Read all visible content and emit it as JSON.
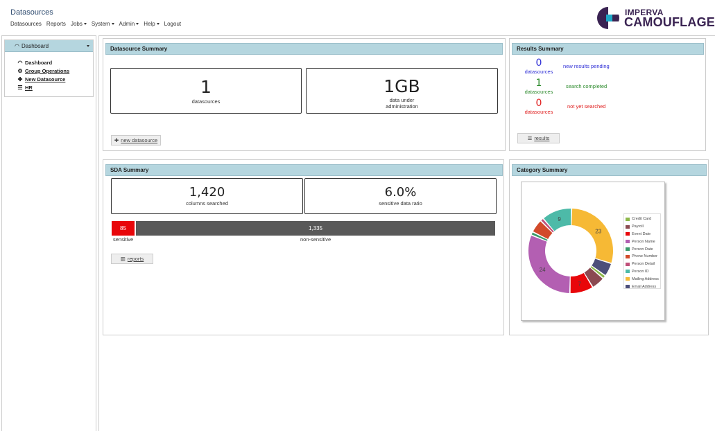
{
  "header": {
    "title": "Datasources",
    "nav": [
      {
        "label": "Datasources",
        "dropdown": false
      },
      {
        "label": "Reports",
        "dropdown": false
      },
      {
        "label": "Jobs",
        "dropdown": true
      },
      {
        "label": "System",
        "dropdown": true
      },
      {
        "label": "Admin",
        "dropdown": true
      },
      {
        "label": "Help",
        "dropdown": true
      },
      {
        "label": "Logout",
        "dropdown": false
      }
    ],
    "logo": {
      "line1": "IMPERVA",
      "line2": "CAMOUFLAGE",
      "color": "#3a2352",
      "accent": "#1fa9c7"
    }
  },
  "sidebar": {
    "header": "Dashboard",
    "links": [
      {
        "label": "Dashboard",
        "icon": "dashboard-icon",
        "underline": false
      },
      {
        "label": "Group Operations",
        "icon": "gears-icon",
        "underline": true
      },
      {
        "label": "New Datasource",
        "icon": "plus-icon",
        "underline": true
      },
      {
        "label": "HR",
        "icon": "database-icon",
        "underline": true
      }
    ]
  },
  "datasource_summary": {
    "title": "Datasource Summary",
    "datasources_value": "1",
    "datasources_label": "datasources",
    "data_value": "1GB",
    "data_label_1": "data under",
    "data_label_2": "administration",
    "button": "new datasource"
  },
  "results_summary": {
    "title": "Results Summary",
    "rows": [
      {
        "value": "0",
        "unit": "datasources",
        "desc": "new results pending",
        "color": "#2f2fd6"
      },
      {
        "value": "1",
        "unit": "datasources",
        "desc": "search completed",
        "color": "#2e8b2e"
      },
      {
        "value": "0",
        "unit": "datasources",
        "desc": "not yet searched",
        "color": "#e02020"
      }
    ],
    "button": "results"
  },
  "sda_summary": {
    "title": "SDA Summary",
    "columns_value": "1,420",
    "columns_label": "columns searched",
    "ratio_value": "6.0%",
    "ratio_label": "sensitive data ratio",
    "sensitive_value": "85",
    "sensitive_label": "sensitive",
    "non_sensitive_value": "1,335",
    "non_sensitive_label": "non-sensitive",
    "button": "reports"
  },
  "category_summary": {
    "title": "Category Summary"
  },
  "chart_data": {
    "type": "pie",
    "donut": true,
    "categories": [
      "Credit Card",
      "Payroll",
      "Event Date",
      "Person Name",
      "Person Date",
      "Phone Number",
      "Person Detail",
      "Person ID",
      "Mailing Address",
      "Email Address"
    ],
    "colors": [
      "#8db84a",
      "#8b4a52",
      "#e8060a",
      "#b35fb2",
      "#3a9a6a",
      "#d24a2a",
      "#c0507a",
      "#4dbaa8",
      "#f6b935",
      "#4d4f7a"
    ],
    "values": [
      1,
      4,
      7,
      24,
      1,
      4,
      1,
      9,
      23,
      4
    ],
    "data_labels": [
      "",
      "",
      "7",
      "24",
      "",
      "",
      "",
      "9",
      "23",
      ""
    ],
    "legend": "right"
  }
}
